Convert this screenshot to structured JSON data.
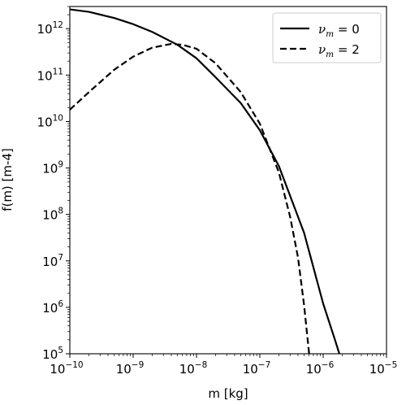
{
  "chart_data": {
    "type": "line",
    "xlabel": "m [kg]",
    "ylabel": "f(m) [m-4]",
    "xscale": "log",
    "yscale": "log",
    "xlim": [
      1e-10,
      1e-05
    ],
    "ylim": [
      100000.0,
      3000000000000.0
    ],
    "x_ticks": [
      {
        "base": "10",
        "exp": "−10",
        "value": 1e-10
      },
      {
        "base": "10",
        "exp": "−9",
        "value": 1e-09
      },
      {
        "base": "10",
        "exp": "−8",
        "value": 1e-08
      },
      {
        "base": "10",
        "exp": "−7",
        "value": 1e-07
      },
      {
        "base": "10",
        "exp": "−6",
        "value": 1e-06
      },
      {
        "base": "10",
        "exp": "−5",
        "value": 1e-05
      }
    ],
    "y_ticks": [
      {
        "base": "10",
        "exp": "5",
        "value": 100000.0
      },
      {
        "base": "10",
        "exp": "6",
        "value": 1000000.0
      },
      {
        "base": "10",
        "exp": "7",
        "value": 10000000.0
      },
      {
        "base": "10",
        "exp": "8",
        "value": 100000000.0
      },
      {
        "base": "10",
        "exp": "9",
        "value": 1000000000.0
      },
      {
        "base": "10",
        "exp": "10",
        "value": 10000000000.0
      },
      {
        "base": "10",
        "exp": "11",
        "value": 100000000000.0
      },
      {
        "base": "10",
        "exp": "12",
        "value": 1000000000000.0
      }
    ],
    "grid": false,
    "legend_position": "top-right",
    "series": [
      {
        "legend_symbol": "ν",
        "legend_sub": "m",
        "legend_rest": " = 0",
        "style": "solid",
        "color": "#000000",
        "x": [
          1e-10,
          2e-10,
          5e-10,
          1e-09,
          2e-09,
          5e-09,
          1e-08,
          2e-08,
          5e-08,
          1e-07,
          2e-07,
          5e-07,
          1e-06,
          1.5e-06,
          1.8e-06
        ],
        "y": [
          2600000000000.0,
          2300000000000.0,
          1700000000000.0,
          1250000000000.0,
          850000000000.0,
          450000000000.0,
          230000000000.0,
          90000000000.0,
          25000000000.0,
          6500000000.0,
          1100000000.0,
          40000000.0,
          1200000.0,
          220000.0,
          100000.0
        ]
      },
      {
        "legend_symbol": "ν",
        "legend_sub": "m",
        "legend_rest": " = 2",
        "style": "dashed",
        "color": "#000000",
        "x": [
          1e-10,
          2e-10,
          5e-10,
          1e-09,
          2e-09,
          4e-09,
          6e-09,
          1e-08,
          2e-08,
          5e-08,
          1e-07,
          2e-07,
          3e-07,
          4e-07,
          5e-07,
          6e-07
        ],
        "y": [
          18000000000.0,
          43000000000.0,
          130000000000.0,
          250000000000.0,
          390000000000.0,
          470000000000.0,
          450000000000.0,
          370000000000.0,
          180000000000.0,
          43000000000.0,
          9000000000.0,
          800000000.0,
          90000000.0,
          12000000.0,
          1100000.0,
          100000.0
        ]
      }
    ]
  }
}
